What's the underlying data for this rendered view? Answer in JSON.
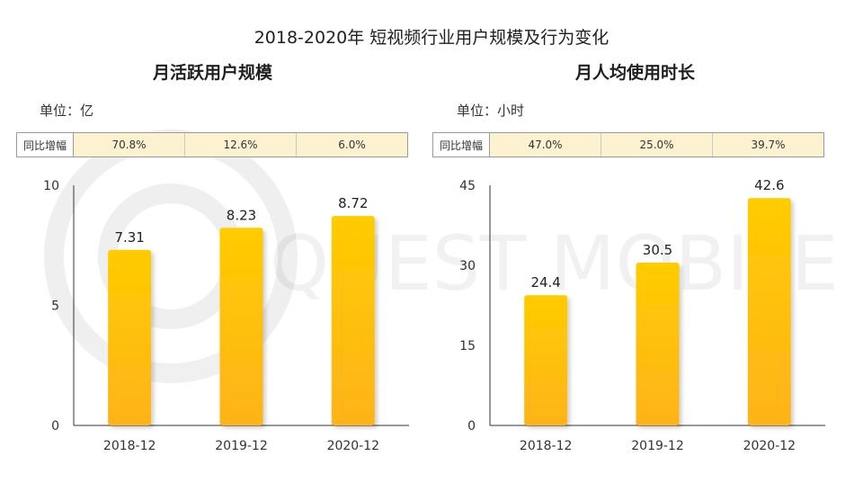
{
  "title": "2018-2020年 短视频行业用户规模及行为变化",
  "watermark_text": "QUEST MOBILE",
  "colors": {
    "bar_top": "#ffcc00",
    "bar_bottom": "#ffb31a",
    "growth_bg": "#fdf2cf",
    "axis": "#333333"
  },
  "chart_data": [
    {
      "type": "bar",
      "title": "月活跃用户规模",
      "unit_label": "单位：亿",
      "growth_header": "同比增幅",
      "growth": [
        "70.8%",
        "12.6%",
        "6.0%"
      ],
      "categories": [
        "2018-12",
        "2019-12",
        "2020-12"
      ],
      "values": [
        7.31,
        8.23,
        8.72
      ],
      "value_labels": [
        "7.31",
        "8.23",
        "8.72"
      ],
      "ylim": [
        0,
        10
      ],
      "yticks": [
        0,
        5,
        10
      ],
      "xlabel": "",
      "ylabel": "",
      "grid": false
    },
    {
      "type": "bar",
      "title": "月人均使用时长",
      "unit_label": "单位：小时",
      "growth_header": "同比增幅",
      "growth": [
        "47.0%",
        "25.0%",
        "39.7%"
      ],
      "categories": [
        "2018-12",
        "2019-12",
        "2020-12"
      ],
      "values": [
        24.4,
        30.5,
        42.6
      ],
      "value_labels": [
        "24.4",
        "30.5",
        "42.6"
      ],
      "ylim": [
        0,
        45
      ],
      "yticks": [
        0,
        15,
        30,
        45
      ],
      "xlabel": "",
      "ylabel": "",
      "grid": false
    }
  ]
}
